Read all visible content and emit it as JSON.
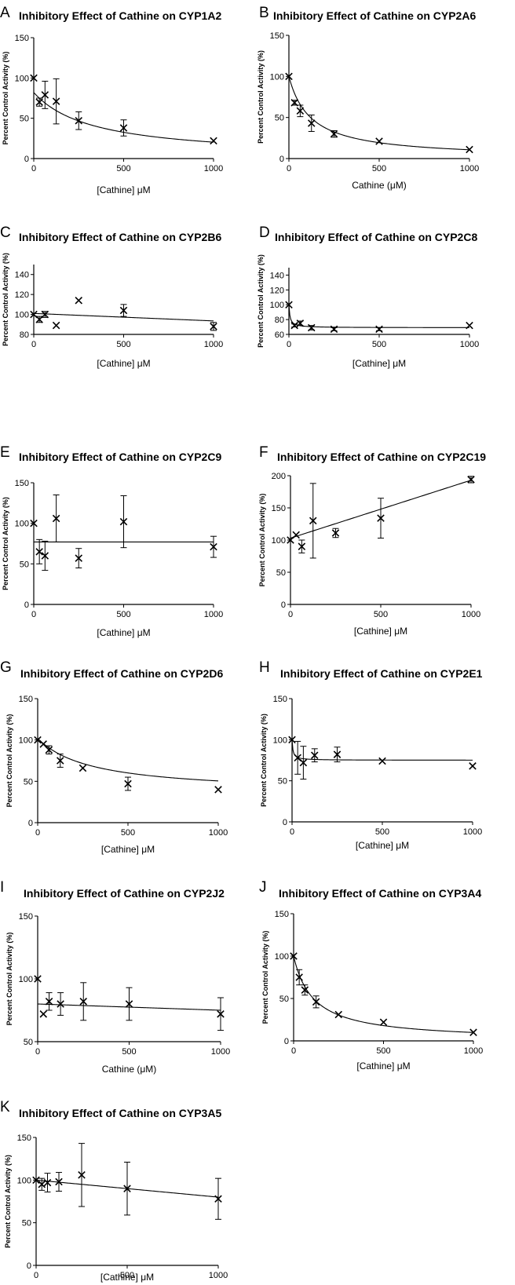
{
  "figure": {
    "panels": [
      {
        "letter": "A",
        "title": "Inhibitory Effect of Cathine on CYP1A2"
      },
      {
        "letter": "B",
        "title": "Inhibitory Effect of Cathine on CYP2A6"
      },
      {
        "letter": "C",
        "title": "Inhibitory Effect of Cathine on CYP2B6"
      },
      {
        "letter": "D",
        "title": "Inhibitory Effect of Cathine on CYP2C8"
      },
      {
        "letter": "E",
        "title": "Inhibitory Effect of Cathine on CYP2C9"
      },
      {
        "letter": "F",
        "title": "Inhibitory Effect of Cathine on CYP2C19"
      },
      {
        "letter": "G",
        "title": "Inhibitory Effect of Cathine on CYP2D6"
      },
      {
        "letter": "H",
        "title": "Inhibitory Effect of Cathine on CYP2E1"
      },
      {
        "letter": "I",
        "title": "Inhibitory Effect of Cathine on CYP2J2"
      },
      {
        "letter": "J",
        "title": "Inhibitory Effect of Cathine on CYP3A4"
      },
      {
        "letter": "K",
        "title": "Inhibitory Effect of Cathine on CYP3A5"
      }
    ]
  },
  "chart_data": [
    {
      "type": "scatter",
      "letter": "A",
      "title": "Inhibitory Effect of Cathine on CYP1A2",
      "xlabel": "[Cathine] μM",
      "ylabel": "Percent Control Activity (%)",
      "xlim": [
        0,
        1000
      ],
      "ylim": [
        0,
        150
      ],
      "xticks": [
        0,
        500,
        1000
      ],
      "yticks": [
        0,
        50,
        100,
        150
      ],
      "points": [
        {
          "x": 0,
          "y": 100,
          "err": 0
        },
        {
          "x": 31.25,
          "y": 70,
          "err": 5
        },
        {
          "x": 62.5,
          "y": 79,
          "err": 17
        },
        {
          "x": 125,
          "y": 71,
          "err": 28
        },
        {
          "x": 250,
          "y": 47,
          "err": 11
        },
        {
          "x": 500,
          "y": 38,
          "err": 10
        },
        {
          "x": 1000,
          "y": 22,
          "err": 0
        }
      ],
      "fit": {
        "kind": "ic50",
        "top": 82,
        "bottom": 0,
        "ic50": 330
      }
    },
    {
      "type": "scatter",
      "letter": "B",
      "title": "Inhibitory Effect of Cathine on CYP2A6",
      "xlabel": "Cathine (μM)",
      "ylabel": "Percent Control Activity (%)",
      "xlim": [
        0,
        1000
      ],
      "ylim": [
        0,
        150
      ],
      "xticks": [
        0,
        500,
        1000
      ],
      "yticks": [
        0,
        50,
        100,
        150
      ],
      "points": [
        {
          "x": 0,
          "y": 100,
          "err": 0
        },
        {
          "x": 31.25,
          "y": 68,
          "err": 3
        },
        {
          "x": 62.5,
          "y": 58,
          "err": 7
        },
        {
          "x": 125,
          "y": 43,
          "err": 10
        },
        {
          "x": 250,
          "y": 30,
          "err": 4
        },
        {
          "x": 500,
          "y": 21,
          "err": 0
        },
        {
          "x": 1000,
          "y": 11,
          "err": 0
        }
      ],
      "fit": {
        "kind": "ic50",
        "top": 100,
        "bottom": 0,
        "ic50": 120
      }
    },
    {
      "type": "scatter",
      "letter": "C",
      "title": "Inhibitory Effect of Cathine on CYP2B6",
      "xlabel": "[Cathine] μM",
      "ylabel": "Percent Control Activity (%)",
      "xlim": [
        0,
        1000
      ],
      "ylim": [
        80,
        150
      ],
      "xticks": [
        0,
        500,
        1000
      ],
      "yticks": [
        80,
        100,
        120,
        140
      ],
      "points": [
        {
          "x": 0,
          "y": 100,
          "err": 0
        },
        {
          "x": 31.25,
          "y": 95,
          "err": 3
        },
        {
          "x": 62.5,
          "y": 100,
          "err": 3
        },
        {
          "x": 125,
          "y": 89,
          "err": 0
        },
        {
          "x": 250,
          "y": 114,
          "err": 0
        },
        {
          "x": 500,
          "y": 104,
          "err": 6
        },
        {
          "x": 1000,
          "y": 88,
          "err": 4
        }
      ],
      "fit": {
        "kind": "linear",
        "y0": 101,
        "y1": 93.5
      }
    },
    {
      "type": "scatter",
      "letter": "D",
      "title": "Inhibitory Effect of Cathine on CYP2C8",
      "xlabel": "[Cathine] μM",
      "ylabel": "Percent Control Activity (%)",
      "xlim": [
        0,
        1000
      ],
      "ylim": [
        60,
        150
      ],
      "xticks": [
        0,
        500,
        1000
      ],
      "yticks": [
        60,
        80,
        100,
        120,
        140
      ],
      "points": [
        {
          "x": 0,
          "y": 100,
          "err": 0
        },
        {
          "x": 31.25,
          "y": 72,
          "err": 2
        },
        {
          "x": 62.5,
          "y": 75,
          "err": 3
        },
        {
          "x": 125,
          "y": 69,
          "err": 3
        },
        {
          "x": 250,
          "y": 67,
          "err": 2
        },
        {
          "x": 500,
          "y": 67,
          "err": 2
        },
        {
          "x": 1000,
          "y": 72,
          "err": 0
        }
      ],
      "fit": {
        "kind": "ic50",
        "top": 100,
        "bottom": 69,
        "ic50": 6
      }
    },
    {
      "type": "scatter",
      "letter": "E",
      "title": "Inhibitory Effect of Cathine on CYP2C9",
      "xlabel": "[Cathine] μM",
      "ylabel": "Percent Control Activity (%)",
      "xlim": [
        0,
        1000
      ],
      "ylim": [
        0,
        150
      ],
      "xticks": [
        0,
        500,
        1000
      ],
      "yticks": [
        0,
        50,
        100,
        150
      ],
      "points": [
        {
          "x": 0,
          "y": 100,
          "err": 0
        },
        {
          "x": 31.25,
          "y": 65,
          "err": 15
        },
        {
          "x": 62.5,
          "y": 60,
          "err": 18
        },
        {
          "x": 125,
          "y": 106,
          "err": 29
        },
        {
          "x": 250,
          "y": 57,
          "err": 12
        },
        {
          "x": 500,
          "y": 102,
          "err": 32
        },
        {
          "x": 1000,
          "y": 71,
          "err": 13
        }
      ],
      "fit": {
        "kind": "linear",
        "y0": 77,
        "y1": 77
      }
    },
    {
      "type": "scatter",
      "letter": "F",
      "title": "Inhibitory Effect of Cathine on CYP2C19",
      "xlabel": "[Cathine] μM",
      "ylabel": "Percent Control Activity (%)",
      "xlim": [
        0,
        1000
      ],
      "ylim": [
        0,
        200
      ],
      "xticks": [
        0,
        500,
        1000
      ],
      "yticks": [
        0,
        50,
        100,
        150,
        200
      ],
      "points": [
        {
          "x": 0,
          "y": 100,
          "err": 0
        },
        {
          "x": 31.25,
          "y": 108,
          "err": 0
        },
        {
          "x": 62.5,
          "y": 90,
          "err": 10
        },
        {
          "x": 125,
          "y": 130,
          "err": 58
        },
        {
          "x": 250,
          "y": 111,
          "err": 7
        },
        {
          "x": 500,
          "y": 134,
          "err": 31
        },
        {
          "x": 1000,
          "y": 194,
          "err": 5
        }
      ],
      "fit": {
        "kind": "linear",
        "y0": 103,
        "y1": 193
      }
    },
    {
      "type": "scatter",
      "letter": "G",
      "title": "Inhibitory Effect of Cathine on CYP2D6",
      "xlabel": "[Cathine] μM",
      "ylabel": "Percent Control Activity (%)",
      "xlim": [
        0,
        1000
      ],
      "ylim": [
        0,
        150
      ],
      "xticks": [
        0,
        500,
        1000
      ],
      "yticks": [
        0,
        50,
        100,
        150
      ],
      "points": [
        {
          "x": 0,
          "y": 100,
          "err": 0
        },
        {
          "x": 31.25,
          "y": 95,
          "err": 0
        },
        {
          "x": 62.5,
          "y": 88,
          "err": 5
        },
        {
          "x": 125,
          "y": 75,
          "err": 8
        },
        {
          "x": 250,
          "y": 66,
          "err": 0
        },
        {
          "x": 500,
          "y": 47,
          "err": 8
        },
        {
          "x": 1000,
          "y": 40,
          "err": 0
        }
      ],
      "fit": {
        "kind": "ic50",
        "top": 102,
        "bottom": 35,
        "ic50": 300
      }
    },
    {
      "type": "scatter",
      "letter": "H",
      "title": "Inhibitory Effect of Cathine on CYP2E1",
      "xlabel": "[Cathine] μM",
      "ylabel": "Percent Control Activity (%)",
      "xlim": [
        0,
        1000
      ],
      "ylim": [
        0,
        150
      ],
      "xticks": [
        0,
        500,
        1000
      ],
      "yticks": [
        0,
        50,
        100,
        150
      ],
      "points": [
        {
          "x": 0,
          "y": 100,
          "err": 0
        },
        {
          "x": 31.25,
          "y": 78,
          "err": 20
        },
        {
          "x": 62.5,
          "y": 72,
          "err": 20
        },
        {
          "x": 125,
          "y": 81,
          "err": 8
        },
        {
          "x": 250,
          "y": 82,
          "err": 9
        },
        {
          "x": 500,
          "y": 74,
          "err": 0
        },
        {
          "x": 1000,
          "y": 68,
          "err": 0
        }
      ],
      "fit": {
        "kind": "ic50",
        "top": 100,
        "bottom": 75,
        "ic50": 5
      }
    },
    {
      "type": "scatter",
      "letter": "I",
      "title": "Inhibitory Effect of Cathine on CYP2J2",
      "xlabel": "Cathine (μM)",
      "ylabel": "Percent Control Activity (%)",
      "xlim": [
        0,
        1000
      ],
      "ylim": [
        50,
        150
      ],
      "xticks": [
        0,
        500,
        1000
      ],
      "yticks": [
        50,
        100,
        150
      ],
      "points": [
        {
          "x": 0,
          "y": 100,
          "err": 0
        },
        {
          "x": 31.25,
          "y": 72,
          "err": 0
        },
        {
          "x": 62.5,
          "y": 82,
          "err": 7
        },
        {
          "x": 125,
          "y": 80,
          "err": 9
        },
        {
          "x": 250,
          "y": 82,
          "err": 15
        },
        {
          "x": 500,
          "y": 80,
          "err": 13
        },
        {
          "x": 1000,
          "y": 72,
          "err": 13
        }
      ],
      "fit": {
        "kind": "linear",
        "y0": 80,
        "y1": 75
      }
    },
    {
      "type": "scatter",
      "letter": "J",
      "title": "Inhibitory Effect of Cathine on CYP3A4",
      "xlabel": "[Cathine] μM",
      "ylabel": "Percent Control Activity (%)",
      "xlim": [
        0,
        1000
      ],
      "ylim": [
        0,
        150
      ],
      "xticks": [
        0,
        500,
        1000
      ],
      "yticks": [
        0,
        50,
        100,
        150
      ],
      "points": [
        {
          "x": 0,
          "y": 100,
          "err": 0
        },
        {
          "x": 31.25,
          "y": 75,
          "err": 9
        },
        {
          "x": 62.5,
          "y": 60,
          "err": 6
        },
        {
          "x": 125,
          "y": 46,
          "err": 7
        },
        {
          "x": 250,
          "y": 31,
          "err": 0
        },
        {
          "x": 500,
          "y": 22,
          "err": 0
        },
        {
          "x": 1000,
          "y": 10,
          "err": 0
        }
      ],
      "fit": {
        "kind": "ic50",
        "top": 100,
        "bottom": 0,
        "ic50": 110
      }
    },
    {
      "type": "scatter",
      "letter": "K",
      "title": "Inhibitory Effect of Cathine on CYP3A5",
      "xlabel": "[Cathine] μM",
      "ylabel": "Percent Control Activity (%)",
      "xlim": [
        0,
        1000
      ],
      "ylim": [
        0,
        150
      ],
      "xticks": [
        0,
        500,
        1000
      ],
      "yticks": [
        0,
        50,
        100,
        150
      ],
      "points": [
        {
          "x": 0,
          "y": 100,
          "err": 0
        },
        {
          "x": 31.25,
          "y": 95,
          "err": 7
        },
        {
          "x": 62.5,
          "y": 97,
          "err": 11
        },
        {
          "x": 125,
          "y": 98,
          "err": 11
        },
        {
          "x": 250,
          "y": 106,
          "err": 37
        },
        {
          "x": 500,
          "y": 90,
          "err": 31
        },
        {
          "x": 1000,
          "y": 78,
          "err": 24
        }
      ],
      "fit": {
        "kind": "linear",
        "y0": 100,
        "y1": 80
      }
    }
  ]
}
